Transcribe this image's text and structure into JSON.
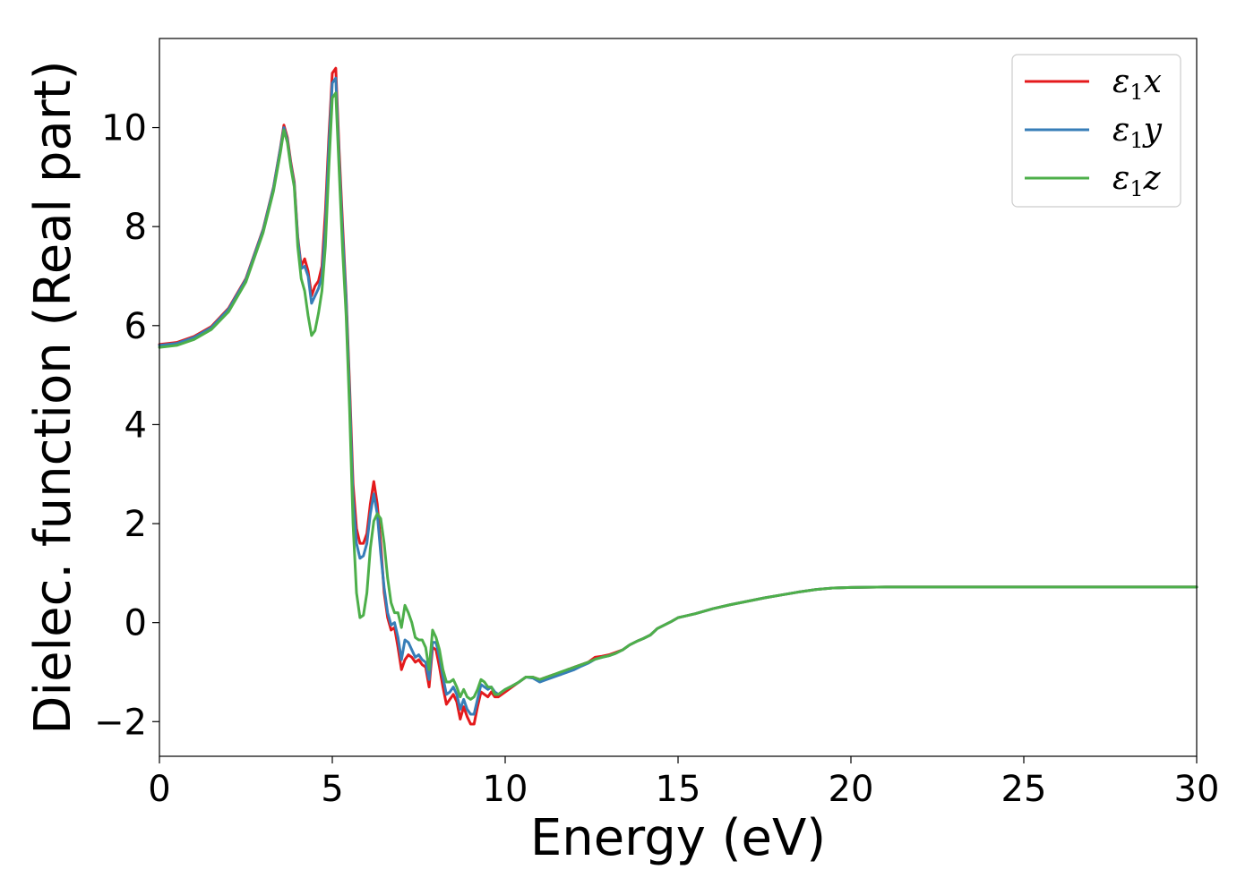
{
  "chart_data": {
    "type": "line",
    "xlabel": "Energy (eV)",
    "ylabel": "Dielec. function (Real part)",
    "xlim": [
      0,
      30
    ],
    "ylim": [
      -2.7,
      11.8
    ],
    "xticks": [
      0,
      5,
      10,
      15,
      20,
      25,
      30
    ],
    "xtick_labels": [
      "0",
      "5",
      "10",
      "15",
      "20",
      "25",
      "30"
    ],
    "yticks": [
      -2,
      0,
      2,
      4,
      6,
      8,
      10
    ],
    "ytick_labels": [
      "−2",
      "0",
      "2",
      "4",
      "6",
      "8",
      "10"
    ],
    "grid": false,
    "legend_position": "top-right",
    "series": [
      {
        "name": "ε₁x",
        "legend_base": "ε",
        "legend_sub": "1",
        "legend_tail": "x",
        "color": "#e41a1c",
        "x": [
          0,
          0.5,
          1,
          1.5,
          2,
          2.5,
          3,
          3.3,
          3.5,
          3.6,
          3.7,
          3.8,
          3.9,
          4.0,
          4.1,
          4.2,
          4.3,
          4.4,
          4.5,
          4.6,
          4.7,
          4.8,
          4.9,
          5.0,
          5.1,
          5.2,
          5.3,
          5.4,
          5.5,
          5.6,
          5.7,
          5.8,
          5.9,
          6.0,
          6.1,
          6.2,
          6.3,
          6.4,
          6.5,
          6.6,
          6.7,
          6.8,
          6.9,
          7.0,
          7.1,
          7.2,
          7.3,
          7.4,
          7.5,
          7.6,
          7.7,
          7.8,
          7.9,
          8.0,
          8.1,
          8.2,
          8.3,
          8.4,
          8.5,
          8.6,
          8.7,
          8.8,
          8.9,
          9.0,
          9.1,
          9.2,
          9.3,
          9.4,
          9.5,
          9.6,
          9.7,
          9.8,
          9.9,
          10.0,
          10.2,
          10.4,
          10.6,
          10.8,
          11.0,
          11.2,
          11.4,
          11.6,
          11.8,
          12.0,
          12.2,
          12.4,
          12.6,
          12.8,
          13.0,
          13.2,
          13.4,
          13.6,
          13.8,
          14.0,
          14.2,
          14.4,
          14.6,
          14.8,
          15.0,
          15.5,
          16.0,
          16.5,
          17.0,
          17.5,
          18.0,
          18.5,
          19.0,
          19.5,
          20.0,
          21.0,
          22.0,
          23.0,
          24.0,
          25.0,
          26.0,
          27.0,
          28.0,
          29.0,
          30.0
        ],
        "y": [
          5.62,
          5.66,
          5.78,
          5.98,
          6.35,
          6.95,
          7.95,
          8.8,
          9.6,
          10.05,
          9.8,
          9.3,
          8.9,
          7.8,
          7.2,
          7.35,
          7.1,
          6.6,
          6.8,
          6.9,
          7.2,
          8.3,
          9.8,
          11.1,
          11.2,
          9.5,
          8.0,
          6.6,
          4.8,
          2.8,
          1.9,
          1.6,
          1.6,
          1.8,
          2.4,
          2.85,
          2.4,
          1.6,
          0.6,
          0.1,
          -0.15,
          -0.1,
          -0.5,
          -0.95,
          -0.75,
          -0.65,
          -0.7,
          -0.8,
          -0.75,
          -0.85,
          -0.9,
          -1.3,
          -0.5,
          -0.55,
          -0.9,
          -1.3,
          -1.65,
          -1.55,
          -1.45,
          -1.6,
          -1.95,
          -1.7,
          -1.9,
          -2.05,
          -2.05,
          -1.7,
          -1.4,
          -1.45,
          -1.5,
          -1.4,
          -1.5,
          -1.5,
          -1.45,
          -1.4,
          -1.3,
          -1.2,
          -1.1,
          -1.1,
          -1.15,
          -1.1,
          -1.05,
          -1.05,
          -0.95,
          -0.9,
          -0.85,
          -0.8,
          -0.7,
          -0.68,
          -0.65,
          -0.6,
          -0.55,
          -0.45,
          -0.38,
          -0.32,
          -0.25,
          -0.12,
          -0.05,
          0.02,
          0.1,
          0.18,
          0.28,
          0.36,
          0.43,
          0.5,
          0.56,
          0.62,
          0.67,
          0.7,
          0.71,
          0.72,
          0.72,
          0.72,
          0.72,
          0.72,
          0.72,
          0.72,
          0.72,
          0.72,
          0.72
        ],
        "comment": ""
      },
      {
        "name": "ε₁y",
        "legend_base": "ε",
        "legend_sub": "1",
        "legend_tail": "y",
        "color": "#377eb8",
        "x": [
          0,
          0.5,
          1,
          1.5,
          2,
          2.5,
          3,
          3.3,
          3.5,
          3.6,
          3.7,
          3.8,
          3.9,
          4.0,
          4.1,
          4.2,
          4.3,
          4.4,
          4.5,
          4.6,
          4.7,
          4.8,
          4.9,
          5.0,
          5.1,
          5.2,
          5.3,
          5.4,
          5.5,
          5.6,
          5.7,
          5.8,
          5.9,
          6.0,
          6.1,
          6.2,
          6.3,
          6.4,
          6.5,
          6.6,
          6.7,
          6.8,
          6.9,
          7.0,
          7.1,
          7.2,
          7.3,
          7.4,
          7.5,
          7.6,
          7.7,
          7.8,
          7.9,
          8.0,
          8.1,
          8.2,
          8.3,
          8.4,
          8.5,
          8.6,
          8.7,
          8.8,
          8.9,
          9.0,
          9.1,
          9.2,
          9.3,
          9.4,
          9.5,
          9.6,
          9.7,
          9.8,
          9.9,
          10.0,
          10.2,
          10.4,
          10.6,
          10.8,
          11.0,
          11.2,
          11.4,
          11.6,
          11.8,
          12.0,
          12.2,
          12.4,
          12.6,
          12.8,
          13.0,
          13.2,
          13.4,
          13.6,
          13.8,
          14.0,
          14.2,
          14.4,
          14.6,
          14.8,
          15.0,
          15.5,
          16.0,
          16.5,
          17.0,
          17.5,
          18.0,
          18.5,
          19.0,
          19.5,
          20.0,
          21.0,
          22.0,
          23.0,
          24.0,
          25.0,
          26.0,
          27.0,
          28.0,
          29.0,
          30.0
        ],
        "y": [
          5.6,
          5.64,
          5.76,
          5.96,
          6.33,
          6.93,
          7.93,
          8.78,
          9.58,
          10.0,
          9.75,
          9.25,
          8.85,
          7.75,
          7.15,
          7.2,
          7.0,
          6.45,
          6.6,
          6.75,
          7.0,
          8.0,
          9.6,
          10.9,
          11.0,
          9.3,
          7.8,
          6.5,
          4.6,
          2.5,
          1.6,
          1.3,
          1.35,
          1.6,
          2.2,
          2.6,
          2.2,
          1.4,
          0.7,
          0.2,
          -0.05,
          0.0,
          -0.3,
          -0.75,
          -0.35,
          -0.4,
          -0.55,
          -0.7,
          -0.65,
          -0.75,
          -0.8,
          -1.15,
          -0.4,
          -0.4,
          -0.7,
          -1.1,
          -1.45,
          -1.4,
          -1.3,
          -1.45,
          -1.75,
          -1.55,
          -1.75,
          -1.85,
          -1.85,
          -1.55,
          -1.25,
          -1.3,
          -1.35,
          -1.3,
          -1.4,
          -1.45,
          -1.4,
          -1.35,
          -1.28,
          -1.2,
          -1.1,
          -1.12,
          -1.2,
          -1.15,
          -1.1,
          -1.05,
          -1.0,
          -0.95,
          -0.88,
          -0.82,
          -0.74,
          -0.7,
          -0.67,
          -0.62,
          -0.55,
          -0.45,
          -0.38,
          -0.32,
          -0.25,
          -0.12,
          -0.05,
          0.02,
          0.1,
          0.18,
          0.28,
          0.36,
          0.43,
          0.5,
          0.56,
          0.62,
          0.67,
          0.7,
          0.71,
          0.72,
          0.72,
          0.72,
          0.72,
          0.72,
          0.72,
          0.72,
          0.72,
          0.72,
          0.72
        ],
        "comment": ""
      },
      {
        "name": "ε₁z",
        "legend_base": "ε",
        "legend_sub": "1",
        "legend_tail": "z",
        "color": "#4daf4a",
        "x": [
          0,
          0.5,
          1,
          1.5,
          2,
          2.5,
          3,
          3.3,
          3.5,
          3.6,
          3.7,
          3.8,
          3.9,
          4.0,
          4.1,
          4.2,
          4.3,
          4.4,
          4.5,
          4.6,
          4.7,
          4.8,
          4.9,
          5.0,
          5.1,
          5.2,
          5.3,
          5.4,
          5.5,
          5.6,
          5.7,
          5.8,
          5.9,
          6.0,
          6.1,
          6.2,
          6.3,
          6.4,
          6.5,
          6.6,
          6.7,
          6.8,
          6.9,
          7.0,
          7.1,
          7.2,
          7.3,
          7.4,
          7.5,
          7.6,
          7.7,
          7.8,
          7.9,
          8.0,
          8.1,
          8.2,
          8.3,
          8.4,
          8.5,
          8.6,
          8.7,
          8.8,
          8.9,
          9.0,
          9.1,
          9.2,
          9.3,
          9.4,
          9.5,
          9.6,
          9.7,
          9.8,
          9.9,
          10.0,
          10.2,
          10.4,
          10.6,
          10.8,
          11.0,
          11.2,
          11.4,
          11.6,
          11.8,
          12.0,
          12.2,
          12.4,
          12.6,
          12.8,
          13.0,
          13.2,
          13.4,
          13.6,
          13.8,
          14.0,
          14.2,
          14.4,
          14.6,
          14.8,
          15.0,
          15.5,
          16.0,
          16.5,
          17.0,
          17.5,
          18.0,
          18.5,
          19.0,
          19.5,
          20.0,
          21.0,
          22.0,
          23.0,
          24.0,
          25.0,
          26.0,
          27.0,
          28.0,
          29.0,
          30.0
        ],
        "y": [
          5.56,
          5.6,
          5.72,
          5.92,
          6.28,
          6.88,
          7.88,
          8.72,
          9.5,
          9.95,
          9.7,
          9.2,
          8.8,
          7.6,
          6.95,
          6.7,
          6.2,
          5.8,
          5.9,
          6.25,
          6.7,
          7.6,
          9.2,
          10.6,
          10.7,
          9.1,
          7.5,
          6.2,
          4.3,
          2.0,
          0.6,
          0.1,
          0.15,
          0.6,
          1.5,
          2.05,
          2.2,
          2.1,
          1.6,
          0.9,
          0.4,
          0.2,
          0.2,
          -0.1,
          0.35,
          0.2,
          0.0,
          -0.3,
          -0.35,
          -0.35,
          -0.5,
          -0.95,
          -0.15,
          -0.3,
          -0.55,
          -0.95,
          -1.2,
          -1.2,
          -1.15,
          -1.3,
          -1.5,
          -1.35,
          -1.5,
          -1.55,
          -1.5,
          -1.35,
          -1.15,
          -1.2,
          -1.3,
          -1.3,
          -1.45,
          -1.45,
          -1.4,
          -1.35,
          -1.28,
          -1.2,
          -1.1,
          -1.1,
          -1.15,
          -1.1,
          -1.05,
          -1.0,
          -0.95,
          -0.9,
          -0.85,
          -0.8,
          -0.74,
          -0.7,
          -0.67,
          -0.62,
          -0.55,
          -0.45,
          -0.38,
          -0.32,
          -0.25,
          -0.12,
          -0.05,
          0.02,
          0.1,
          0.18,
          0.28,
          0.36,
          0.43,
          0.5,
          0.56,
          0.62,
          0.67,
          0.7,
          0.71,
          0.72,
          0.72,
          0.72,
          0.72,
          0.72,
          0.72,
          0.72,
          0.72,
          0.72,
          0.72
        ],
        "comment": ""
      }
    ]
  }
}
